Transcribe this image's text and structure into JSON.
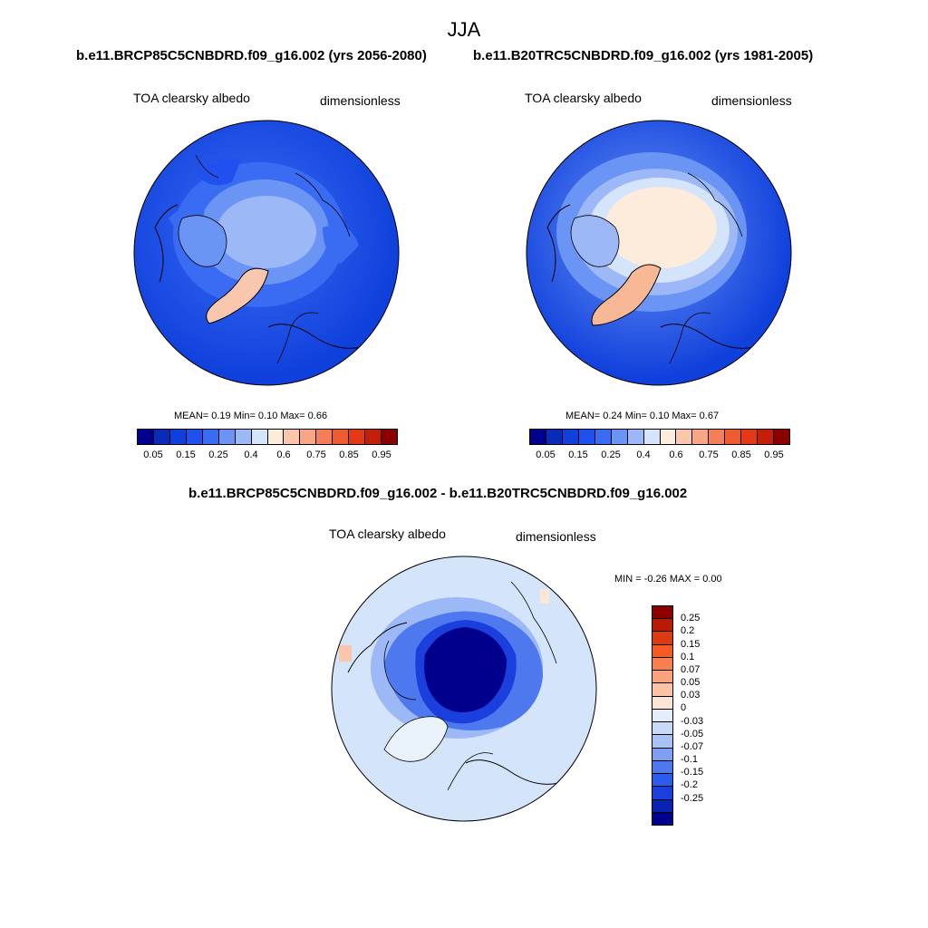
{
  "page": {
    "title": "JJA",
    "left_run": "b.e11.BRCP85C5CNBDRD.f09_g16.002 (yrs 2056-2080)",
    "right_run": "b.e11.B20TRC5CNBDRD.f09_g16.002 (yrs 1981-2005)",
    "diff_title": "b.e11.BRCP85C5CNBDRD.f09_g16.002 - b.e11.B20TRC5CNBDRD.f09_g16.002"
  },
  "panels": {
    "left": {
      "variable": "TOA clearsky albedo",
      "units": "dimensionless",
      "stats": "MEAN=   0.19  Min=   0.10  Max=   0.66"
    },
    "right": {
      "variable": "TOA clearsky albedo",
      "units": "dimensionless",
      "stats": "MEAN=   0.24  Min=   0.10  Max=   0.67"
    },
    "diff": {
      "variable": "TOA clearsky albedo",
      "units": "dimensionless",
      "stats": "MIN =  -0.26 MAX =   0.00"
    }
  },
  "colorbars": {
    "abs": {
      "colors": [
        "#00008c",
        "#0a2bb8",
        "#1040dc",
        "#2050ee",
        "#3a6cf3",
        "#6b95f5",
        "#9cb8f7",
        "#d3e4fb",
        "#fdebdb",
        "#fbc7ac",
        "#f8a686",
        "#f47e5a",
        "#ee5a32",
        "#e33a15",
        "#c51f0a",
        "#8b0000"
      ],
      "labels": [
        "0.05",
        "0.15",
        "0.25",
        "0.4",
        "0.6",
        "0.75",
        "0.85",
        "0.95"
      ]
    },
    "diff": {
      "colors": [
        "#8b0000",
        "#b81a05",
        "#dd3a10",
        "#f55a25",
        "#f8804e",
        "#f9a27d",
        "#fbc3a5",
        "#fde6d6",
        "#e4eefa",
        "#c8daf8",
        "#a9c3f6",
        "#7f9ff2",
        "#4e79ee",
        "#2c5ceb",
        "#1a3fdc",
        "#0a22b2",
        "#00008c"
      ],
      "labels": [
        "0.25",
        "0.2",
        "0.15",
        "0.1",
        "0.07",
        "0.05",
        "0.03",
        "0",
        "-0.03",
        "-0.05",
        "-0.07",
        "-0.1",
        "-0.15",
        "-0.2",
        "-0.25"
      ]
    }
  }
}
